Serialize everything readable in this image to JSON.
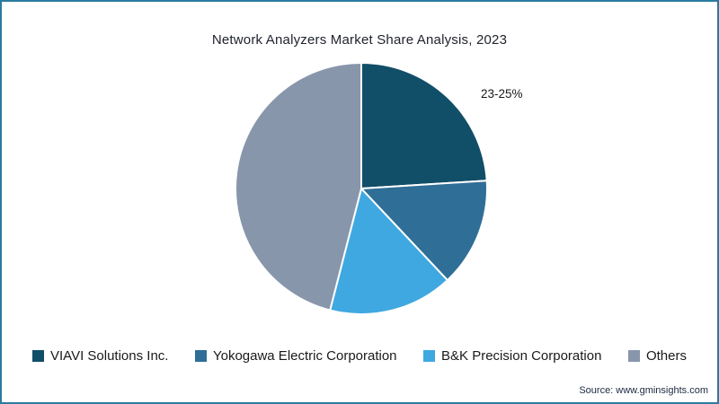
{
  "frame": {
    "border_color": "#2b7ba0",
    "background": "#ffffff"
  },
  "chart": {
    "annotation_label": "23-25%",
    "source": "Source: www.gminsights.com"
  },
  "chart_data": {
    "type": "pie",
    "title": "Network Analyzers Market Share Analysis, 2023",
    "labels": [
      "VIAVI Solutions Inc.",
      "Yokogawa Electric Corporation",
      "B&K Precision Corporation",
      "Others"
    ],
    "values": [
      24,
      14,
      16,
      46
    ],
    "colors": [
      "#114e68",
      "#2f6e96",
      "#3fa8e0",
      "#8896ab"
    ],
    "annotations": [
      {
        "text": "23-25%",
        "target": "VIAVI Solutions Inc.",
        "position": "outside-top-right"
      }
    ],
    "start_angle_deg": 0,
    "direction": "clockwise",
    "slice_stroke_color": "#ffffff",
    "legend_position": "bottom"
  }
}
